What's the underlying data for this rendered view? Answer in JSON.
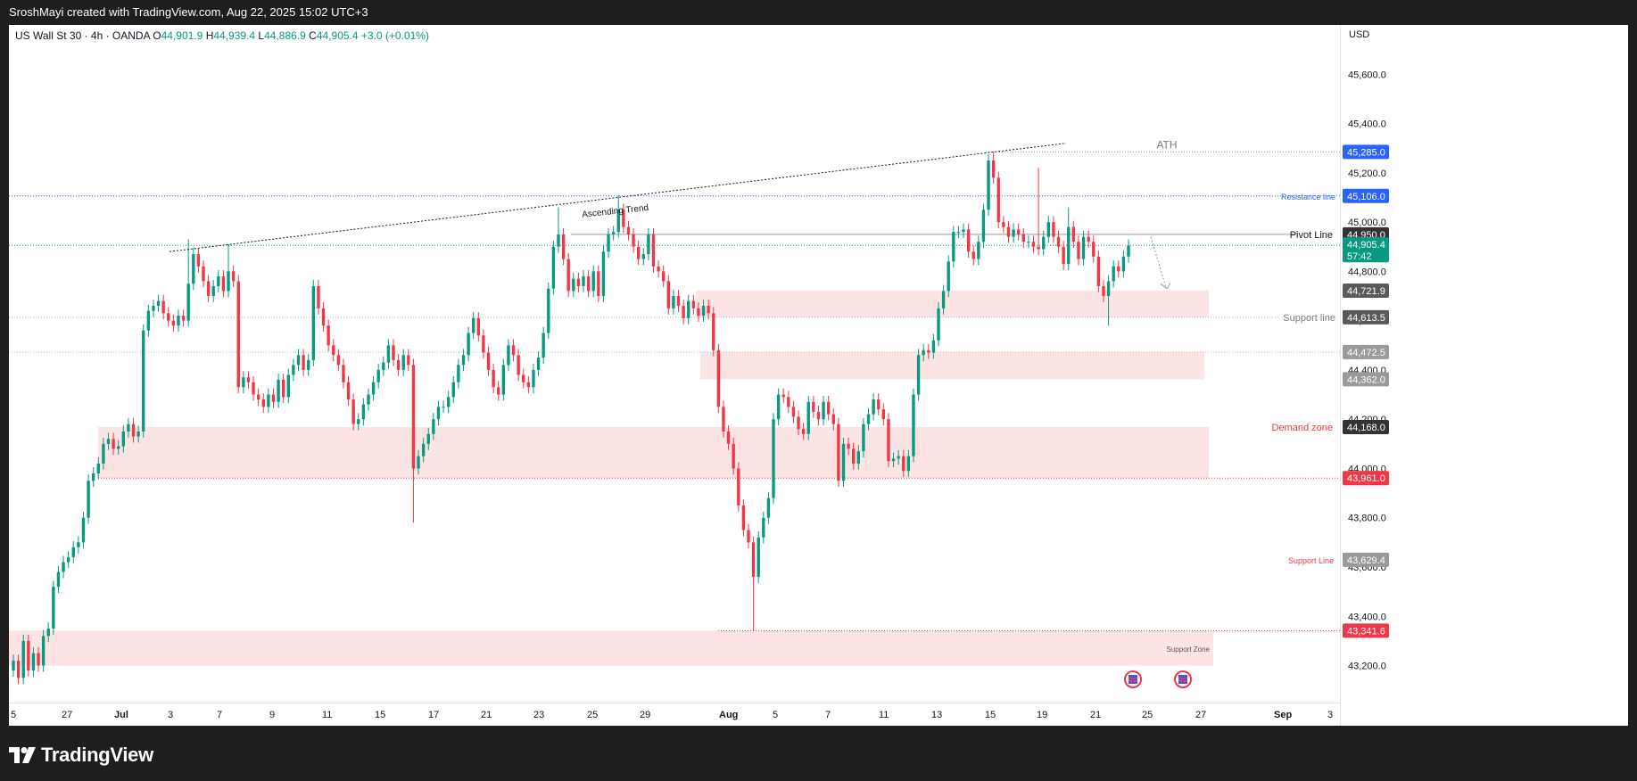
{
  "header": {
    "text": "SroshMayi created with TradingView.com, Aug 22, 2025 15:02 UTC+3"
  },
  "legend": {
    "symbol": "US Wall St 30 · 4h · OANDA",
    "o_label": "O",
    "o_value": "44,901.9",
    "h_label": "H",
    "h_value": "44,939.4",
    "l_label": "L",
    "l_value": "44,886.9",
    "c_label": "C",
    "c_value": "44,905.4",
    "change": "+3.0 (+0.01%)"
  },
  "currency": "USD",
  "logo": {
    "text": "TradingView"
  },
  "colors": {
    "up": "#089981",
    "down": "#f23645",
    "zone": "#fde4e4",
    "resistance": "#2962ff"
  },
  "chart_data": {
    "type": "candlestick",
    "title": "US Wall St 30 · 4h · OANDA",
    "ylim": [
      43050,
      45800
    ],
    "y_ticks": [
      43200,
      43400,
      43600,
      43800,
      44000,
      44200,
      44400,
      44600,
      44800,
      45000,
      45200,
      45400,
      45600
    ],
    "y_tick_labels": [
      "43,200.0",
      "43,400.0",
      "43,600.0",
      "43,800.0",
      "44,000.0",
      "44,200.0",
      "44,400.0",
      "44,600.0",
      "44,800.0",
      "45,000.0",
      "45,200.0",
      "45,400.0",
      "45,600.0"
    ],
    "x_ticks": [
      "5",
      "27",
      "Jul",
      "3",
      "7",
      "9",
      "11",
      "15",
      "17",
      "21",
      "23",
      "25",
      "29",
      "Aug",
      "5",
      "7",
      "11",
      "13",
      "15",
      "19",
      "21",
      "25",
      "27",
      "Sep",
      "3"
    ],
    "price_labels": [
      {
        "value": 45285.0,
        "text": "45,285.0",
        "color": "#2962ff"
      },
      {
        "value": 45106.0,
        "text": "45,106.0",
        "color": "#2962ff"
      },
      {
        "value": 44950.0,
        "text": "44,950.0",
        "color": "#333333"
      },
      {
        "value": 44905.4,
        "text": "44,905.4",
        "text2": "57:42",
        "color": "#089981"
      },
      {
        "value": 44721.9,
        "text": "44,721.9",
        "color": "#595959"
      },
      {
        "value": 44613.5,
        "text": "44,613.5",
        "color": "#595959"
      },
      {
        "value": 44472.5,
        "text": "44,472.5",
        "color": "#9a9a9a"
      },
      {
        "value": 44362.0,
        "text": "44,362.0",
        "color": "#9a9a9a"
      },
      {
        "value": 44168.0,
        "text": "44,168.0",
        "color": "#333333"
      },
      {
        "value": 43961.0,
        "text": "43,961.0",
        "color": "#f23645"
      },
      {
        "value": 43629.4,
        "text": "43,629.4",
        "color": "#9a9a9a"
      },
      {
        "value": 43341.6,
        "text": "43,341.6",
        "color": "#f23645"
      }
    ],
    "zones": [
      {
        "name": "support-zone-upper",
        "from": 44613.5,
        "to": 44721.9
      },
      {
        "name": "zone-middle",
        "from": 44362.0,
        "to": 44472.5
      },
      {
        "name": "demand-zone",
        "from": 43961.0,
        "to": 44168.0
      },
      {
        "name": "support-zone-bottom",
        "from": 43200,
        "to": 43341.6
      }
    ],
    "annotations": [
      {
        "text": "ATH",
        "value": 45285.0
      },
      {
        "text": "Resistance line",
        "value": 45106.0
      },
      {
        "text": "Pivot Line",
        "value": 44950.0
      },
      {
        "text": "Support line",
        "value": 44613.5
      },
      {
        "text": "Demand zone",
        "value": 44168.0
      },
      {
        "text": "Support Line",
        "value": 43629.4
      },
      {
        "text": "Support Zone",
        "value": 43270
      },
      {
        "text": "Ascending Trend",
        "value": 45030
      }
    ],
    "trendline": {
      "start": 44880,
      "end": 45320
    },
    "closes": [
      43220,
      43150,
      43300,
      43180,
      43250,
      43200,
      43320,
      43350,
      43520,
      43580,
      43620,
      43640,
      43680,
      43700,
      43800,
      43950,
      43980,
      44020,
      44100,
      44120,
      44080,
      44090,
      44150,
      44180,
      44130,
      44150,
      44560,
      44640,
      44660,
      44680,
      44630,
      44600,
      44580,
      44620,
      44600,
      44750,
      44870,
      44820,
      44760,
      44700,
      44740,
      44780,
      44720,
      44800,
      44760,
      44330,
      44370,
      44350,
      44300,
      44280,
      44250,
      44300,
      44270,
      44360,
      44290,
      44380,
      44420,
      44460,
      44400,
      44440,
      44740,
      44650,
      44580,
      44500,
      44460,
      44420,
      44350,
      44280,
      44180,
      44200,
      44260,
      44300,
      44350,
      44400,
      44430,
      44500,
      44440,
      44400,
      44460,
      44420,
      44000,
      44050,
      44100,
      44140,
      44200,
      44250,
      44250,
      44290,
      44350,
      44420,
      44460,
      44550,
      44610,
      44540,
      44470,
      44400,
      44330,
      44300,
      44420,
      44500,
      44460,
      44380,
      44350,
      44330,
      44400,
      44450,
      44550,
      44730,
      44900,
      44950,
      44850,
      44720,
      44770,
      44740,
      44780,
      44720,
      44800,
      44700,
      44880,
      44950,
      44960,
      45050,
      44980,
      44950,
      44900,
      44850,
      44870,
      44950,
      44820,
      44800,
      44760,
      44650,
      44700,
      44660,
      44610,
      44680,
      44650,
      44620,
      44660,
      44630,
      44480,
      44250,
      44150,
      44100,
      44000,
      43850,
      43750,
      43700,
      43560,
      43720,
      43800,
      43880,
      44200,
      44300,
      44290,
      44250,
      44210,
      44160,
      44140,
      44270,
      44230,
      44200,
      44270,
      44220,
      44180,
      43950,
      44100,
      44080,
      44020,
      44070,
      44180,
      44220,
      44280,
      44240,
      44200,
      44030,
      44040,
      44050,
      43990,
      44050,
      44300,
      44460,
      44480,
      44470,
      44520,
      44650,
      44720,
      44840,
      44960,
      44960,
      44970,
      44880,
      44850,
      44920,
      45050,
      45250,
      45180,
      45000,
      44980,
      44940,
      44970,
      44950,
      44920,
      44920,
      44900,
      44890,
      44940,
      45000,
      44940,
      44900,
      44830,
      44980,
      44920,
      44850,
      44940,
      44920,
      44860,
      44740,
      44700,
      44760,
      44820,
      44800,
      44860,
      44905
    ],
    "highs": [
      null,
      null,
      null,
      null,
      null,
      null,
      null,
      null,
      null,
      null,
      null,
      null,
      null,
      null,
      null,
      null,
      null,
      null,
      null,
      null,
      null,
      null,
      null,
      null,
      null,
      null,
      null,
      null,
      null,
      null,
      null,
      null,
      null,
      null,
      null,
      44930,
      null,
      null,
      null,
      null,
      null,
      null,
      null,
      44910,
      null,
      null,
      null,
      null,
      null,
      null,
      null,
      null,
      null,
      null,
      null,
      null,
      null,
      null,
      null,
      null,
      null,
      null,
      null,
      null,
      null,
      null,
      null,
      null,
      null,
      null,
      null,
      null,
      null,
      null,
      null,
      null,
      null,
      null,
      null,
      null,
      null,
      null,
      null,
      null,
      null,
      null,
      null,
      null,
      null,
      null,
      null,
      null,
      null,
      null,
      null,
      null,
      null,
      null,
      null,
      null,
      null,
      null,
      null,
      null,
      null,
      null,
      null,
      null,
      null,
      45060,
      null,
      null,
      null,
      null,
      null,
      null,
      null,
      null,
      null,
      null,
      null,
      45110,
      null,
      null,
      null,
      null,
      null,
      null,
      null,
      null,
      null,
      null,
      null,
      null,
      null,
      null,
      null,
      null,
      null,
      null,
      null,
      null,
      null,
      null,
      null,
      null,
      null,
      null,
      null,
      null,
      null,
      null,
      null,
      null,
      null,
      null,
      null,
      null,
      null,
      null,
      null,
      null,
      null,
      null,
      null,
      null,
      null,
      null,
      null,
      null,
      null,
      null,
      null,
      null,
      null,
      null,
      null,
      null,
      null,
      null,
      null,
      null,
      null,
      null,
      null,
      null,
      null,
      null,
      null,
      null,
      null,
      null,
      null,
      null,
      null,
      null,
      45285,
      null,
      null,
      null,
      null,
      null,
      null,
      null,
      null,
      45220,
      null,
      null,
      null,
      null,
      null,
      45060,
      null,
      null,
      null,
      null,
      null,
      null,
      null,
      null,
      null,
      null,
      null,
      null,
      null,
      null,
      null,
      null,
      null
    ],
    "lows": [
      null,
      null,
      null,
      null,
      null,
      null,
      null,
      null,
      null,
      null,
      null,
      null,
      null,
      null,
      null,
      null,
      null,
      null,
      null,
      null,
      null,
      null,
      null,
      null,
      null,
      null,
      null,
      null,
      null,
      null,
      null,
      null,
      null,
      null,
      null,
      null,
      null,
      null,
      null,
      null,
      null,
      null,
      null,
      null,
      null,
      null,
      null,
      null,
      null,
      null,
      null,
      null,
      null,
      null,
      null,
      null,
      null,
      null,
      null,
      null,
      null,
      null,
      null,
      null,
      null,
      null,
      null,
      null,
      null,
      null,
      null,
      null,
      null,
      null,
      null,
      null,
      null,
      null,
      null,
      null,
      43780,
      null,
      null,
      null,
      null,
      null,
      null,
      null,
      null,
      null,
      null,
      null,
      null,
      null,
      null,
      null,
      null,
      null,
      null,
      null,
      null,
      null,
      null,
      null,
      null,
      null,
      null,
      null,
      null,
      null,
      null,
      null,
      null,
      null,
      null,
      null,
      null,
      null,
      null,
      null,
      null,
      null,
      null,
      null,
      null,
      null,
      null,
      null,
      null,
      null,
      null,
      null,
      null,
      null,
      null,
      null,
      null,
      null,
      null,
      null,
      null,
      null,
      null,
      null,
      null,
      null,
      null,
      null,
      43341.6,
      null,
      null,
      null,
      null,
      null,
      null,
      null,
      null,
      null,
      null,
      null,
      null,
      null,
      null,
      null,
      null,
      null,
      null,
      null,
      null,
      null,
      null,
      null,
      null,
      null,
      null,
      null,
      null,
      null,
      null,
      null,
      null,
      null,
      null,
      null,
      null,
      null,
      null,
      null,
      null,
      null,
      null,
      null,
      null,
      null,
      null,
      null,
      null,
      null,
      null,
      null,
      null,
      null,
      null,
      null,
      null,
      null,
      null,
      null,
      null,
      null,
      null,
      null,
      null,
      null,
      null,
      null,
      null,
      null,
      null,
      44580,
      null,
      null,
      null,
      null,
      null,
      null,
      null,
      null,
      null,
      null
    ]
  }
}
